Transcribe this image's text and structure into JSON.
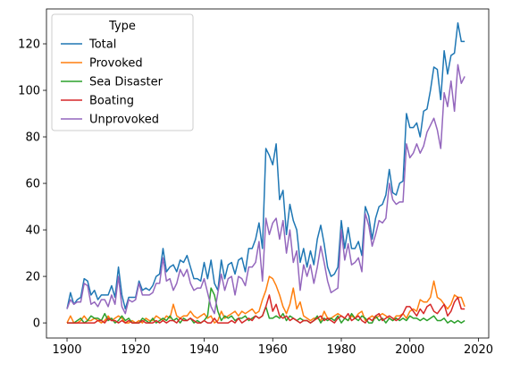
{
  "chart_data": {
    "type": "line",
    "title": "",
    "xlabel": "",
    "ylabel": "",
    "xlim": [
      1894,
      2023
    ],
    "ylim": [
      -6.5,
      135
    ],
    "xticks": [
      1900,
      1920,
      1940,
      1960,
      1980,
      2000,
      2020
    ],
    "yticks": [
      0,
      20,
      40,
      60,
      80,
      100,
      120
    ],
    "grid": false,
    "legend": {
      "title": "Type",
      "placement": "upper-left"
    },
    "x": [
      1900,
      1901,
      1902,
      1903,
      1904,
      1905,
      1906,
      1907,
      1908,
      1909,
      1910,
      1911,
      1912,
      1913,
      1914,
      1915,
      1916,
      1917,
      1918,
      1919,
      1920,
      1921,
      1922,
      1923,
      1924,
      1925,
      1926,
      1927,
      1928,
      1929,
      1930,
      1931,
      1932,
      1933,
      1934,
      1935,
      1936,
      1937,
      1938,
      1939,
      1940,
      1941,
      1942,
      1943,
      1944,
      1945,
      1946,
      1947,
      1948,
      1949,
      1950,
      1951,
      1952,
      1953,
      1954,
      1955,
      1956,
      1957,
      1958,
      1959,
      1960,
      1961,
      1962,
      1963,
      1964,
      1965,
      1966,
      1967,
      1968,
      1969,
      1970,
      1971,
      1972,
      1973,
      1974,
      1975,
      1976,
      1977,
      1978,
      1979,
      1980,
      1981,
      1982,
      1983,
      1984,
      1985,
      1986,
      1987,
      1988,
      1989,
      1990,
      1991,
      1992,
      1993,
      1994,
      1995,
      1996,
      1997,
      1998,
      1999,
      2000,
      2001,
      2002,
      2003,
      2004,
      2005,
      2006,
      2007,
      2008,
      2009,
      2010,
      2011,
      2012,
      2013,
      2014,
      2015,
      2016
    ],
    "series": [
      {
        "name": "Total",
        "color": "#1f77b4",
        "values": [
          6,
          13,
          8,
          10,
          11,
          19,
          18,
          12,
          14,
          10,
          12,
          12,
          12,
          16,
          11,
          24,
          12,
          6,
          11,
          11,
          11,
          18,
          14,
          15,
          14,
          16,
          20,
          21,
          32,
          22,
          24,
          25,
          22,
          27,
          26,
          29,
          24,
          19,
          19,
          18,
          26,
          19,
          27,
          17,
          14,
          27,
          19,
          25,
          26,
          21,
          27,
          28,
          22,
          32,
          32,
          36,
          43,
          32,
          75,
          72,
          68,
          77,
          53,
          57,
          38,
          51,
          44,
          40,
          26,
          32,
          24,
          31,
          25,
          36,
          42,
          34,
          24,
          20,
          21,
          24,
          44,
          32,
          41,
          32,
          32,
          35,
          29,
          50,
          46,
          36,
          45,
          50,
          51,
          55,
          66,
          56,
          55,
          60,
          61,
          90,
          84,
          84,
          86,
          80,
          91,
          92,
          100,
          110,
          109,
          96,
          117,
          107,
          115,
          116,
          129,
          121,
          121
        ]
      },
      {
        "name": "Provoked",
        "color": "#ff7f0e",
        "values": [
          0,
          3,
          0,
          0,
          1,
          3,
          1,
          1,
          2,
          1,
          0,
          1,
          3,
          1,
          2,
          3,
          2,
          0,
          0,
          1,
          0,
          1,
          0,
          2,
          1,
          1,
          3,
          2,
          1,
          3,
          2,
          8,
          3,
          2,
          3,
          3,
          5,
          3,
          2,
          3,
          4,
          2,
          3,
          0,
          1,
          5,
          2,
          3,
          4,
          5,
          3,
          5,
          4,
          5,
          6,
          4,
          5,
          10,
          14,
          20,
          19,
          16,
          12,
          7,
          4,
          8,
          15,
          6,
          9,
          3,
          2,
          1,
          2,
          2,
          1,
          5,
          2,
          2,
          3,
          4,
          3,
          2,
          1,
          3,
          2,
          4,
          5,
          1,
          2,
          3,
          2,
          3,
          4,
          3,
          2,
          1,
          3,
          3,
          4,
          2,
          5,
          6,
          5,
          10,
          9,
          9,
          11,
          18,
          11,
          10,
          8,
          6,
          8,
          12,
          11,
          11,
          7
        ]
      },
      {
        "name": "Sea Disaster",
        "color": "#2ca02c",
        "values": [
          0,
          0,
          0,
          1,
          2,
          0,
          1,
          3,
          2,
          2,
          1,
          4,
          1,
          2,
          0,
          1,
          3,
          1,
          2,
          0,
          0,
          0,
          2,
          1,
          0,
          2,
          0,
          1,
          2,
          1,
          3,
          1,
          2,
          0,
          2,
          1,
          2,
          0,
          1,
          0,
          1,
          3,
          15,
          12,
          5,
          1,
          3,
          2,
          3,
          1,
          2,
          2,
          3,
          1,
          2,
          3,
          2,
          3,
          7,
          2,
          2,
          3,
          2,
          4,
          1,
          3,
          2,
          1,
          2,
          1,
          1,
          0,
          1,
          3,
          0,
          2,
          1,
          2,
          1,
          3,
          0,
          2,
          1,
          4,
          2,
          1,
          3,
          2,
          0,
          0,
          3,
          1,
          2,
          0,
          2,
          1,
          2,
          1,
          2,
          1,
          3,
          2,
          2,
          1,
          2,
          1,
          2,
          3,
          1,
          1,
          2,
          0,
          1,
          0,
          1,
          0,
          1
        ]
      },
      {
        "name": "Boating",
        "color": "#d62728",
        "values": [
          0,
          0,
          0,
          0,
          0,
          0,
          0,
          0,
          0,
          1,
          1,
          0,
          2,
          1,
          1,
          0,
          1,
          0,
          1,
          0,
          0,
          0,
          1,
          0,
          0,
          0,
          1,
          0,
          1,
          0,
          1,
          1,
          0,
          2,
          1,
          1,
          2,
          1,
          0,
          0,
          1,
          0,
          0,
          2,
          0,
          0,
          0,
          0,
          1,
          0,
          2,
          0,
          1,
          2,
          1,
          3,
          2,
          3,
          7,
          12,
          5,
          8,
          3,
          2,
          3,
          1,
          2,
          1,
          0,
          1,
          1,
          0,
          1,
          2,
          3,
          1,
          2,
          1,
          0,
          2,
          3,
          2,
          4,
          1,
          2,
          3,
          1,
          0,
          2,
          1,
          3,
          4,
          1,
          2,
          3,
          2,
          1,
          2,
          4,
          7,
          7,
          5,
          3,
          6,
          4,
          7,
          8,
          5,
          4,
          6,
          8,
          3,
          5,
          9,
          11,
          6,
          6
        ]
      },
      {
        "name": "Unprovoked",
        "color": "#9467bd",
        "values": [
          6,
          10,
          8,
          9,
          9,
          17,
          16,
          8,
          9,
          7,
          10,
          10,
          7,
          12,
          8,
          20,
          7,
          4,
          10,
          9,
          10,
          17,
          12,
          12,
          12,
          13,
          17,
          17,
          28,
          18,
          19,
          14,
          17,
          23,
          20,
          23,
          17,
          14,
          15,
          15,
          19,
          13,
          7,
          4,
          13,
          21,
          14,
          19,
          20,
          12,
          20,
          19,
          16,
          24,
          24,
          26,
          35,
          18,
          45,
          38,
          43,
          45,
          36,
          44,
          30,
          40,
          26,
          31,
          14,
          25,
          20,
          25,
          17,
          24,
          33,
          26,
          18,
          13,
          14,
          15,
          40,
          27,
          34,
          25,
          26,
          28,
          22,
          47,
          42,
          33,
          38,
          44,
          43,
          45,
          60,
          53,
          51,
          52,
          52,
          77,
          71,
          73,
          77,
          73,
          76,
          82,
          85,
          88,
          83,
          75,
          99,
          93,
          104,
          91,
          111,
          103,
          106
        ]
      }
    ]
  }
}
